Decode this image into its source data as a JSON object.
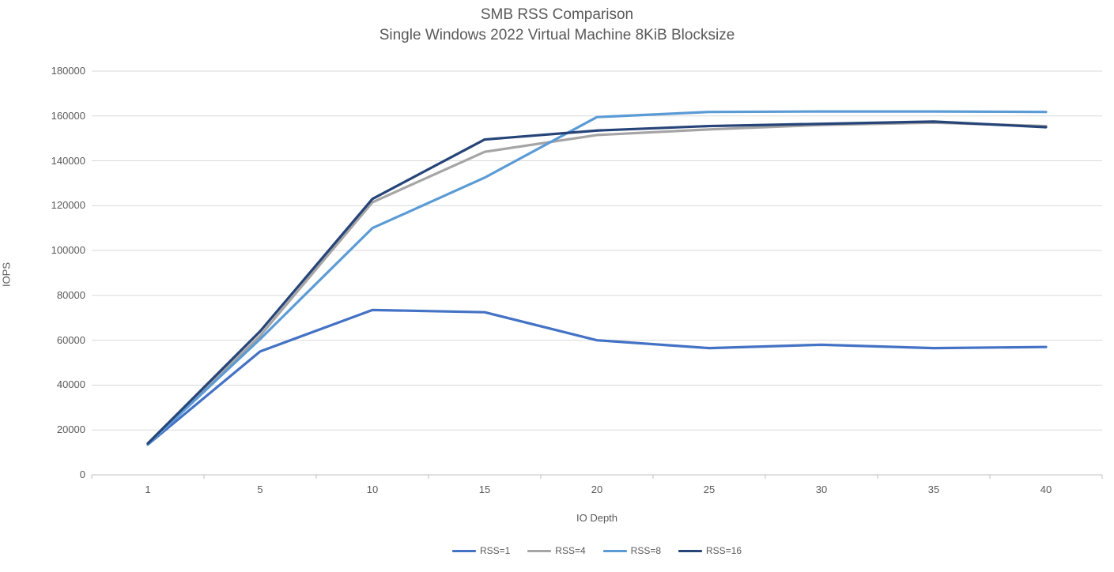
{
  "chart_data": {
    "type": "line",
    "title": "SMB RSS Comparison",
    "subtitle": "Single Windows 2022 Virtual Machine 8KiB Blocksize",
    "xlabel": "IO Depth",
    "ylabel": "IOPS",
    "x_axis_type": "categorical",
    "categories": [
      1,
      5,
      10,
      15,
      20,
      25,
      30,
      35,
      40
    ],
    "x_tick_labels": [
      "1",
      "5",
      "10",
      "15",
      "20",
      "25",
      "30",
      "35",
      "40"
    ],
    "ytick_labels": [
      "0",
      "20000",
      "40000",
      "60000",
      "80000",
      "100000",
      "120000",
      "140000",
      "160000",
      "180000"
    ],
    "ylim": [
      0,
      180000
    ],
    "ytick_step": 20000,
    "grid": "horizontal",
    "legend_position": "bottom",
    "series": [
      {
        "name": "RSS=1",
        "color": "#4472C4",
        "values": [
          13500,
          55000,
          73500,
          72500,
          60000,
          56500,
          58000,
          56500,
          57000
        ]
      },
      {
        "name": "RSS=4",
        "color": "#A5A5A5",
        "values": [
          13800,
          62000,
          121500,
          144000,
          151500,
          154000,
          156000,
          157000,
          155500
        ]
      },
      {
        "name": "RSS=8",
        "color": "#5B9BD5",
        "values": [
          13600,
          60500,
          110000,
          132500,
          159500,
          161800,
          162000,
          162000,
          161800
        ]
      },
      {
        "name": "RSS=16",
        "color": "#264478",
        "values": [
          14000,
          64000,
          123000,
          149500,
          153500,
          155500,
          156500,
          157500,
          155000
        ]
      }
    ]
  },
  "colors": {
    "gridline": "#D9D9D9",
    "axis_line": "#BFBFBF",
    "text": "#595959"
  }
}
